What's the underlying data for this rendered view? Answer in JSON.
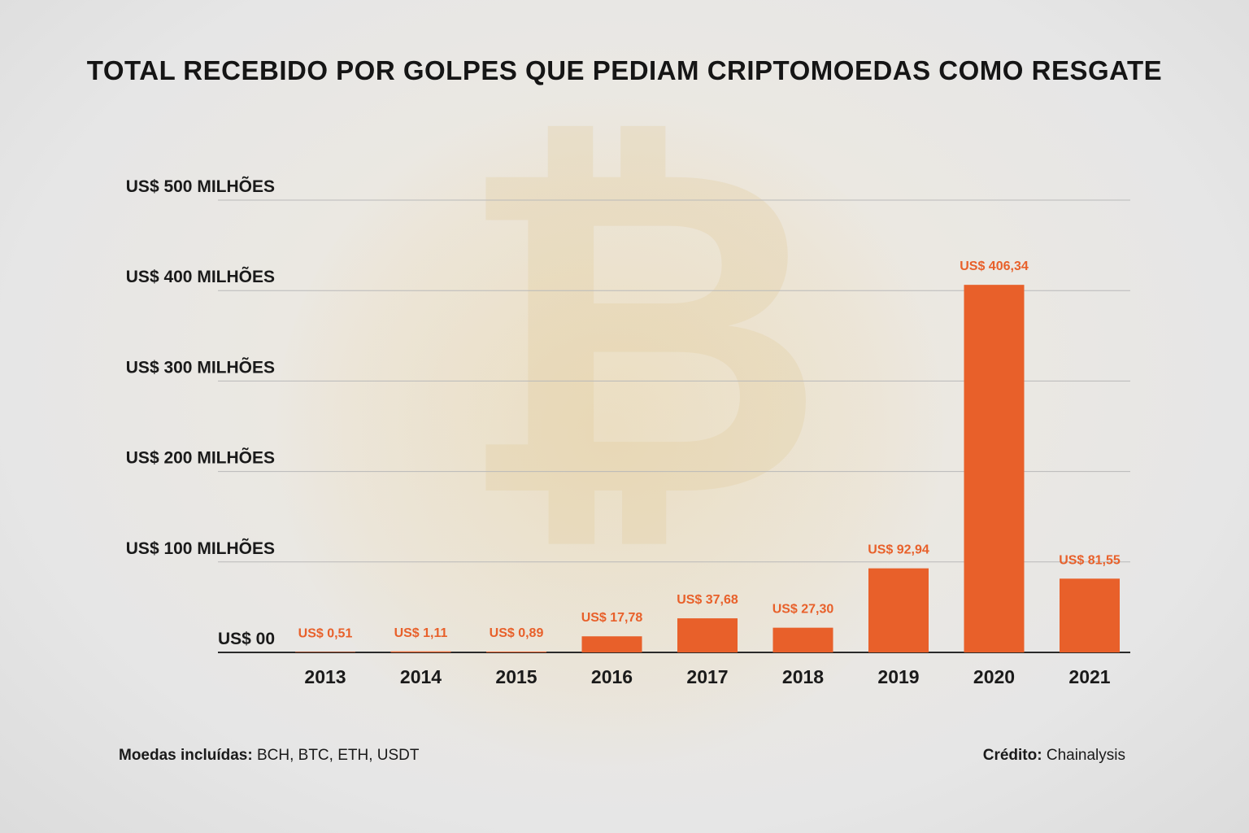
{
  "chart_data": {
    "type": "bar",
    "title": "TOTAL RECEBIDO POR GOLPES QUE PEDIAM CRIPTOMOEDAS COMO RESGATE",
    "categories": [
      "2013",
      "2014",
      "2015",
      "2016",
      "2017",
      "2018",
      "2019",
      "2020",
      "2021"
    ],
    "values": [
      0.51,
      1.11,
      0.89,
      17.78,
      37.68,
      27.3,
      92.94,
      406.34,
      81.55
    ],
    "value_labels": [
      "US$ 0,51",
      "US$ 1,11",
      "US$ 0,89",
      "US$ 17,78",
      "US$ 37,68",
      "US$ 27,30",
      "US$ 92,94",
      "US$ 406,34",
      "US$ 81,55"
    ],
    "y_ticks": [
      0,
      100,
      200,
      300,
      400,
      500
    ],
    "y_tick_labels": [
      "US$ 00",
      "US$ 100 MILHÕES",
      "US$ 200 MILHÕES",
      "US$ 300 MILHÕES",
      "US$ 400 MILHÕES",
      "US$ 500 MILHÕES"
    ],
    "ylim": [
      0,
      500
    ],
    "grid": true,
    "bar_color": "#e8602a",
    "label_color": "#e8602a"
  },
  "footer": {
    "coins_label": "Moedas incluídas:",
    "coins_value": "BCH, BTC, ETH, USDT",
    "credit_label": "Crédito:",
    "credit_value": "Chainalysis"
  },
  "background": {
    "symbol_icon": "bitcoin-icon"
  }
}
